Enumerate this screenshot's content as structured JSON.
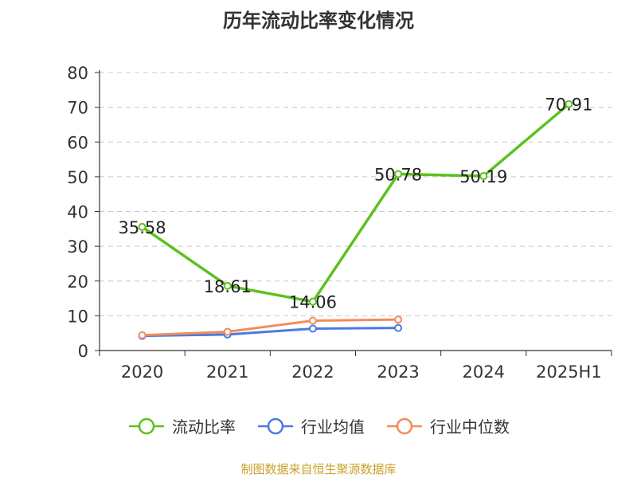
{
  "chart_data": {
    "type": "line",
    "title": "历年流动比率变化情况",
    "categories": [
      "2020",
      "2021",
      "2022",
      "2023",
      "2024",
      "2025H1"
    ],
    "ylim": [
      0,
      80
    ],
    "yticks": [
      0,
      10,
      20,
      30,
      40,
      50,
      60,
      70,
      80
    ],
    "grid": true,
    "legend_position": "bottom",
    "series": [
      {
        "name": "流动比率",
        "color": "#5cc11f",
        "values": [
          35.58,
          18.61,
          14.06,
          50.78,
          50.19,
          70.91
        ],
        "labels": [
          "35.58",
          "18.61",
          "14.06",
          "50.78",
          "50.19",
          "70.91"
        ]
      },
      {
        "name": "行业均值",
        "color": "#4a7be0",
        "values": [
          4.2,
          4.6,
          6.3,
          6.5,
          null,
          null
        ]
      },
      {
        "name": "行业中位数",
        "color": "#f28c5a",
        "values": [
          4.4,
          5.4,
          8.6,
          8.9,
          null,
          null
        ]
      }
    ]
  },
  "source_note": "制图数据来自恒生聚源数据库"
}
